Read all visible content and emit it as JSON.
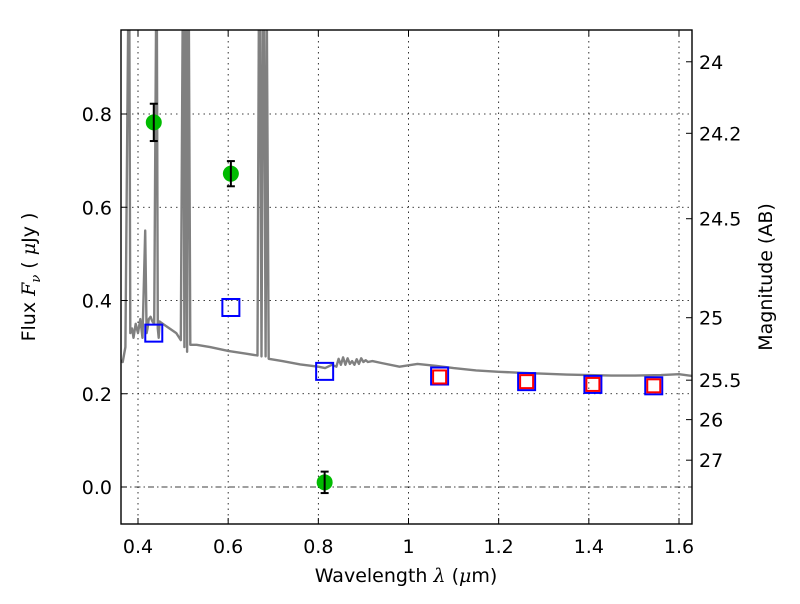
{
  "chart_data": {
    "type": "scatter",
    "title": "",
    "xlabel": "Wavelength  λ (μm)",
    "xlabel_parts": {
      "text": "Wavelength  ",
      "symbol": "λ",
      "unit_open": " (",
      "unit_mu": "μ",
      "unit_rest": "m)"
    },
    "ylabel": "Flux  Fν  ( μJy )",
    "ylabel_parts": {
      "text": "Flux  ",
      "symbol": "F",
      "sub": "ν",
      "unit_open": "  ( ",
      "unit_mu": "μ",
      "unit_rest": "Jy )"
    },
    "y2label": "Magnitude (AB)",
    "xlim": [
      0.35,
      1.63
    ],
    "ylim": [
      -0.08,
      0.98
    ],
    "grid": true,
    "xticks": [
      0.4,
      0.6,
      0.8,
      1.0,
      1.2,
      1.4,
      1.6
    ],
    "xtick_labels": [
      "0.4",
      "0.6",
      "0.8",
      "1",
      "1.2",
      "1.4",
      "1.6"
    ],
    "yticks": [
      0.0,
      0.2,
      0.4,
      0.6,
      0.8
    ],
    "ytick_labels": [
      "0.0",
      "0.2",
      "0.4",
      "0.6",
      "0.8"
    ],
    "y2ticks": [
      {
        "label": "24",
        "flux": 0.912
      },
      {
        "label": "24.2",
        "flux": 0.7586
      },
      {
        "label": "24.5",
        "flux": 0.5754
      },
      {
        "label": "25",
        "flux": 0.3631
      },
      {
        "label": "25.5",
        "flux": 0.2291
      },
      {
        "label": "26",
        "flux": 0.1445
      },
      {
        "label": "27",
        "flux": 0.0575
      }
    ],
    "series": [
      {
        "name": "observed",
        "kind": "points_with_errors",
        "color": "#00bb00",
        "errorbar_color": "#000000",
        "x": [
          0.435,
          0.606,
          0.814
        ],
        "y": [
          0.782,
          0.672,
          0.01
        ],
        "yerr": [
          0.04,
          0.027,
          0.023
        ]
      },
      {
        "name": "model_blue",
        "kind": "open_square",
        "color": "#0000ff",
        "x": [
          0.435,
          0.606,
          0.814,
          1.069,
          1.262,
          1.409,
          1.544
        ],
        "y": [
          0.33,
          0.385,
          0.248,
          0.238,
          0.226,
          0.22,
          0.217
        ]
      },
      {
        "name": "model_red",
        "kind": "open_square",
        "color": "#ff0000",
        "x": [
          1.069,
          1.262,
          1.409,
          1.544
        ],
        "y": [
          0.236,
          0.226,
          0.22,
          0.217
        ]
      },
      {
        "name": "sed_template",
        "kind": "line",
        "color": "#808080",
        "x": [
          0.35,
          0.366,
          0.372,
          0.378,
          0.381,
          0.383,
          0.387,
          0.39,
          0.395,
          0.4,
          0.405,
          0.41,
          0.416,
          0.419,
          0.421,
          0.424,
          0.428,
          0.432,
          0.436,
          0.44,
          0.442,
          0.444,
          0.446,
          0.448,
          0.455,
          0.47,
          0.485,
          0.495,
          0.499,
          0.501,
          0.503,
          0.505,
          0.507,
          0.509,
          0.511,
          0.513,
          0.516,
          0.53,
          0.56,
          0.6,
          0.64,
          0.665,
          0.668,
          0.671,
          0.674,
          0.677,
          0.68,
          0.683,
          0.686,
          0.69,
          0.72,
          0.76,
          0.8,
          0.815,
          0.83,
          0.84,
          0.845,
          0.85,
          0.855,
          0.86,
          0.865,
          0.87,
          0.875,
          0.88,
          0.885,
          0.89,
          0.895,
          0.9,
          0.905,
          0.91,
          0.92,
          0.94,
          0.98,
          1.02,
          1.06,
          1.1,
          1.15,
          1.2,
          1.25,
          1.3,
          1.35,
          1.4,
          1.45,
          1.5,
          1.56,
          1.6,
          1.63
        ],
        "y": [
          0.28,
          0.268,
          0.3,
          0.98,
          0.98,
          0.33,
          0.34,
          0.32,
          0.35,
          0.33,
          0.36,
          0.32,
          0.55,
          0.33,
          0.34,
          0.36,
          0.365,
          0.355,
          0.35,
          0.98,
          0.98,
          0.34,
          0.32,
          0.355,
          0.35,
          0.34,
          0.33,
          0.315,
          0.98,
          0.98,
          0.3,
          0.98,
          0.98,
          0.29,
          0.98,
          0.98,
          0.305,
          0.305,
          0.3,
          0.292,
          0.286,
          0.282,
          0.98,
          0.98,
          0.28,
          0.98,
          0.98,
          0.28,
          0.98,
          0.275,
          0.27,
          0.263,
          0.258,
          0.255,
          0.262,
          0.258,
          0.275,
          0.262,
          0.278,
          0.262,
          0.276,
          0.264,
          0.27,
          0.262,
          0.274,
          0.264,
          0.276,
          0.268,
          0.272,
          0.268,
          0.27,
          0.266,
          0.258,
          0.264,
          0.26,
          0.255,
          0.25,
          0.247,
          0.245,
          0.243,
          0.241,
          0.24,
          0.239,
          0.239,
          0.24,
          0.242,
          0.238
        ]
      }
    ]
  }
}
